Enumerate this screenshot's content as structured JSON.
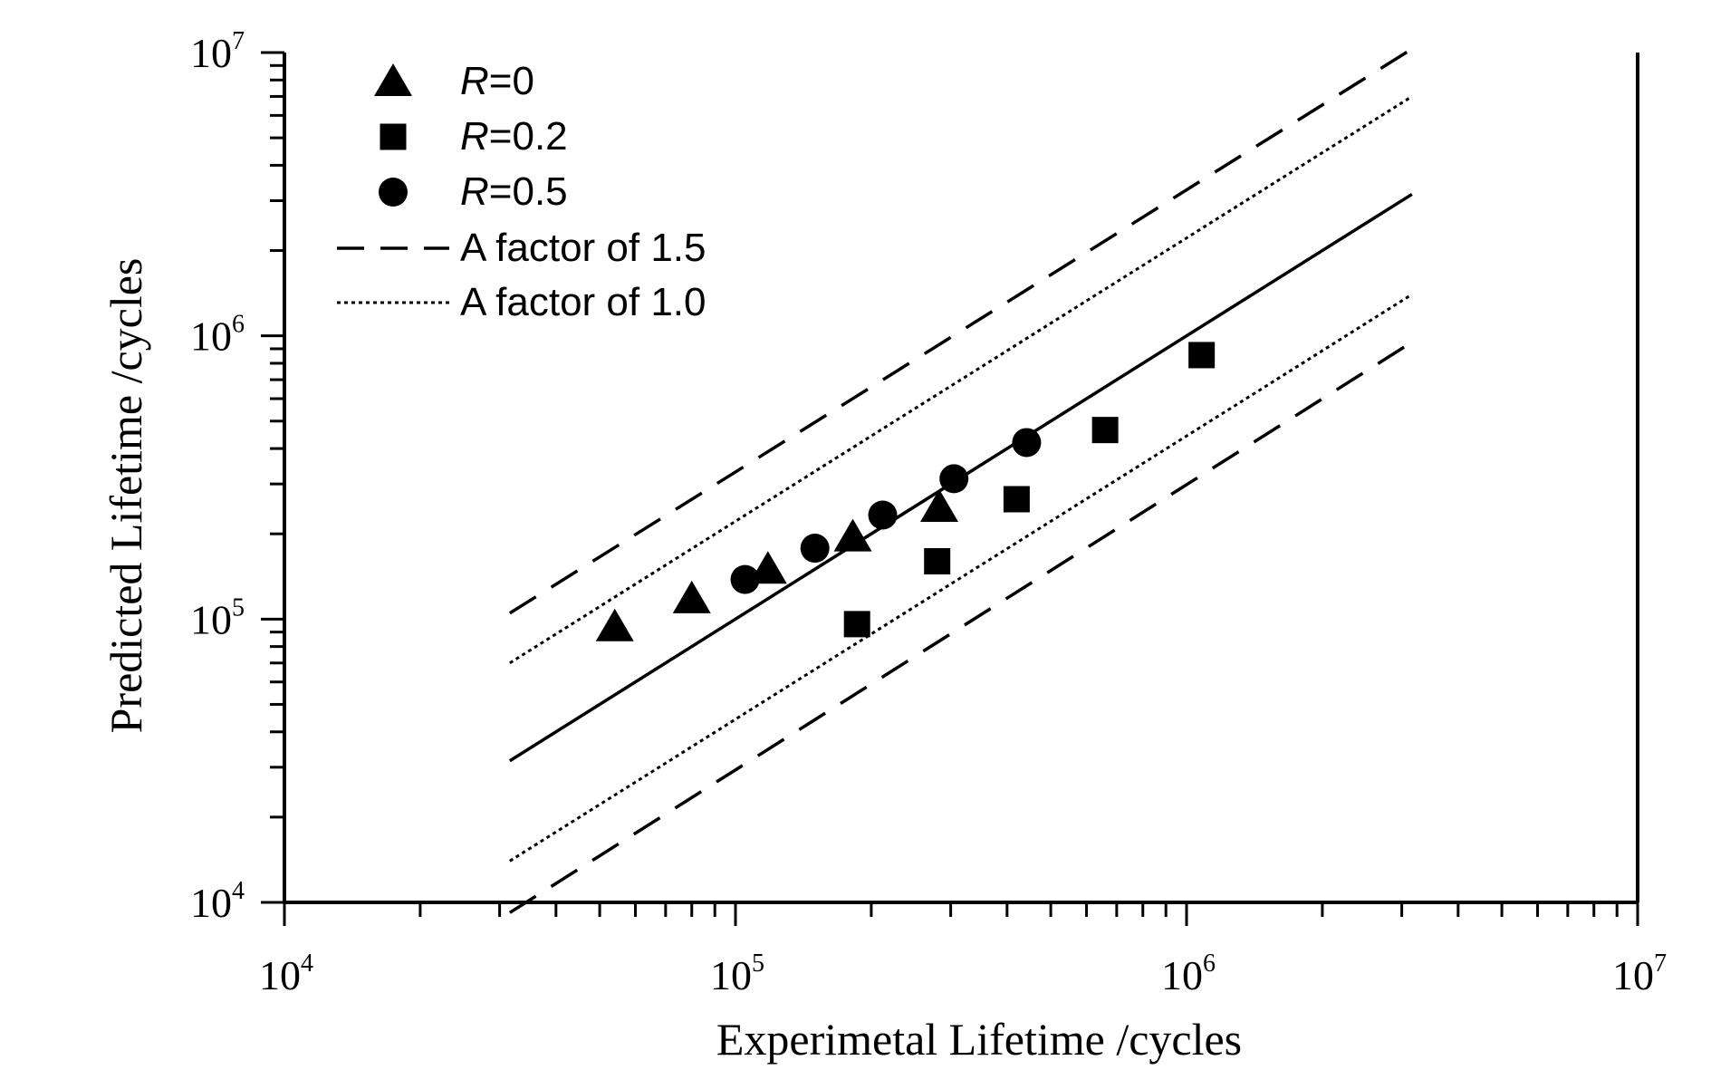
{
  "chart_data": {
    "type": "scatter",
    "xscale": "log",
    "yscale": "log",
    "xlim": [
      10000,
      10000000
    ],
    "ylim": [
      10000,
      10000000
    ],
    "xlabel": "Experimetal Lifetime /cycles",
    "ylabel": "Predicted Lifetime /cycles",
    "x_ticks": [
      {
        "base": "10",
        "exp": "4",
        "value": 10000
      },
      {
        "base": "10",
        "exp": "5",
        "value": 100000
      },
      {
        "base": "10",
        "exp": "6",
        "value": 1000000
      },
      {
        "base": "10",
        "exp": "7",
        "value": 10000000
      }
    ],
    "y_ticks": [
      {
        "base": "10",
        "exp": "4",
        "value": 10000
      },
      {
        "base": "10",
        "exp": "5",
        "value": 100000
      },
      {
        "base": "10",
        "exp": "6",
        "value": 1000000
      },
      {
        "base": "10",
        "exp": "7",
        "value": 10000000
      }
    ],
    "series": [
      {
        "italic": "R",
        "rest": "=0",
        "marker": "triangle",
        "x": [
          54000,
          80000,
          118000,
          182000,
          283000
        ],
        "y": [
          94000,
          118000,
          150000,
          195000,
          248000
        ]
      },
      {
        "italic": "R",
        "rest": "=0.2",
        "marker": "square",
        "x": [
          186000,
          280000,
          420000,
          660000,
          1080000
        ],
        "y": [
          96000,
          160000,
          265000,
          465000,
          855000
        ]
      },
      {
        "italic": "R",
        "rest": "=0.5",
        "marker": "circle",
        "x": [
          105000,
          150000,
          212000,
          305000,
          442000
        ],
        "y": [
          138000,
          178000,
          233000,
          313000,
          420000
        ]
      }
    ],
    "reference_lines": [
      {
        "style": "solid",
        "x": [
          31600,
          3160000
        ],
        "y": [
          31600,
          3160000
        ]
      },
      {
        "style": "dashed",
        "name": "A factor of 1.5",
        "x": [
          31600,
          3160000
        ],
        "y": [
          105000,
          10300000
        ]
      },
      {
        "style": "dashed",
        "x": [
          31600,
          3160000
        ],
        "y": [
          9200,
          950000
        ]
      },
      {
        "style": "dotted",
        "name": "A factor of 1.0",
        "x": [
          31600,
          3160000
        ],
        "y": [
          70000,
          7000000
        ]
      },
      {
        "style": "dotted",
        "x": [
          31600,
          3160000
        ],
        "y": [
          14000,
          1400000
        ]
      }
    ],
    "legend": {
      "position": "top-left",
      "entries": [
        {
          "marker": "triangle",
          "italic": "R",
          "rest": "=0"
        },
        {
          "marker": "square",
          "italic": "R",
          "rest": "=0.2"
        },
        {
          "marker": "circle",
          "italic": "R",
          "rest": "=0.5"
        },
        {
          "line": "dashed",
          "label": "A factor of 1.5"
        },
        {
          "line": "dotted",
          "label": "A factor of 1.0"
        }
      ]
    },
    "colors": {
      "ink": "#000000",
      "background": "#ffffff"
    }
  }
}
